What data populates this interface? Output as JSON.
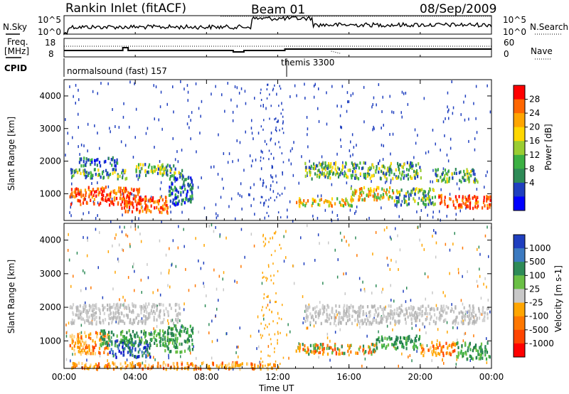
{
  "header": {
    "station": "Rankin Inlet (fitACF)",
    "beam": "Beam 01",
    "date": "08/Sep/2009"
  },
  "noise_panel": {
    "left_label": "N.Sky",
    "right_label": "N.Search",
    "left_ticks": [
      "10^5",
      "10^0"
    ],
    "right_ticks": [
      "10^5",
      "10^0"
    ]
  },
  "freq_panel": {
    "left_label_1": "Freq.",
    "left_label_2": "[MHz]",
    "right_label": "Nave",
    "left_ticks": [
      "18",
      "8"
    ],
    "right_ticks": [
      "60",
      "0"
    ]
  },
  "cpid": {
    "label": "CPID",
    "modes": [
      {
        "name": "normalsound (fast) 157",
        "start_hour": 0
      },
      {
        "name": "themis 3300",
        "start_hour": 12.5
      }
    ]
  },
  "time_axis": {
    "label": "Time UT",
    "ticks": [
      "00:00",
      "04:00",
      "08:00",
      "12:00",
      "16:00",
      "20:00",
      "00:00"
    ],
    "tick_hours": [
      0,
      4,
      8,
      12,
      16,
      20,
      24
    ]
  },
  "chart_data": [
    {
      "type": "heatmap",
      "name": "power",
      "ylabel": "Slant Range [km]",
      "xlabel": "Time UT",
      "xlim": [
        0,
        24
      ],
      "ylim": [
        180,
        4500
      ],
      "yticks": [
        1000,
        2000,
        3000,
        4000
      ],
      "colorbar": {
        "label": "Power [dB]",
        "ticks": [
          "28",
          "24",
          "20",
          "16",
          "12",
          "8",
          "4"
        ],
        "colors": [
          "#ff0000",
          "#ff6600",
          "#ffa500",
          "#ffd700",
          "#9acd32",
          "#3cb043",
          "#2e8b57",
          "#1f3fbf",
          "#0000ff"
        ]
      },
      "bands": [
        {
          "t0": 0.3,
          "t1": 4.2,
          "r0": 700,
          "r1": 1250,
          "level": "high"
        },
        {
          "t0": 3.2,
          "t1": 5.8,
          "r0": 450,
          "r1": 950,
          "level": "high"
        },
        {
          "t0": 0.3,
          "t1": 3.5,
          "r0": 1500,
          "r1": 1800,
          "level": "mid"
        },
        {
          "t0": 4.0,
          "t1": 6.6,
          "r0": 1550,
          "r1": 1950,
          "level": "mid"
        },
        {
          "t0": 0.8,
          "t1": 3.0,
          "r0": 1900,
          "r1": 2150,
          "level": "low"
        },
        {
          "t0": 5.8,
          "t1": 7.2,
          "r0": 700,
          "r1": 1600,
          "level": "low"
        },
        {
          "t0": 13.0,
          "t1": 16.2,
          "r0": 650,
          "r1": 900,
          "level": "midhigh"
        },
        {
          "t0": 13.5,
          "t1": 20.0,
          "r0": 1500,
          "r1": 2000,
          "level": "mid"
        },
        {
          "t0": 16.0,
          "t1": 18.5,
          "r0": 850,
          "r1": 1250,
          "level": "midhigh"
        },
        {
          "t0": 18.5,
          "t1": 20.8,
          "r0": 700,
          "r1": 1200,
          "level": "mid"
        },
        {
          "t0": 21.0,
          "t1": 23.9,
          "r0": 600,
          "r1": 1000,
          "level": "high"
        },
        {
          "t0": 20.8,
          "t1": 23.2,
          "r0": 1400,
          "r1": 1800,
          "level": "mid"
        }
      ]
    },
    {
      "type": "heatmap",
      "name": "velocity",
      "ylabel": "Slant Range [km]",
      "xlabel": "Time UT",
      "xlim": [
        0,
        24
      ],
      "ylim": [
        180,
        4500
      ],
      "yticks": [
        1000,
        2000,
        3000,
        4000
      ],
      "colorbar": {
        "label": "Velocity [m s-1]",
        "ticks": [
          "1000",
          "500",
          "100",
          "25",
          "-25",
          "-100",
          "-500",
          "-1000"
        ],
        "colors": [
          "#1f3fbf",
          "#3c7ac0",
          "#2e8b57",
          "#6abf45",
          "#c8c8c8",
          "#ffa500",
          "#ff7700",
          "#ff4500",
          "#ff0000"
        ]
      },
      "bands": [
        {
          "t0": 0.3,
          "t1": 6.5,
          "r0": 1550,
          "r1": 2150,
          "level": "ground"
        },
        {
          "t0": 0.3,
          "t1": 2.5,
          "r0": 650,
          "r1": 1300,
          "level": "neg"
        },
        {
          "t0": 2.5,
          "t1": 4.8,
          "r0": 550,
          "r1": 1050,
          "level": "pos"
        },
        {
          "t0": 2.0,
          "t1": 5.6,
          "r0": 900,
          "r1": 1350,
          "level": "green"
        },
        {
          "t0": 5.6,
          "t1": 7.2,
          "r0": 700,
          "r1": 1500,
          "level": "green"
        },
        {
          "t0": 0.3,
          "t1": 12.0,
          "r0": 200,
          "r1": 400,
          "level": "neg"
        },
        {
          "t0": 13.5,
          "t1": 23.8,
          "r0": 1550,
          "r1": 2100,
          "level": "ground"
        },
        {
          "t0": 13.0,
          "t1": 17.5,
          "r0": 650,
          "r1": 950,
          "level": "mixed"
        },
        {
          "t0": 17.5,
          "t1": 20.0,
          "r0": 800,
          "r1": 1200,
          "level": "green"
        },
        {
          "t0": 20.0,
          "t1": 22.0,
          "r0": 600,
          "r1": 1000,
          "level": "neg"
        },
        {
          "t0": 22.0,
          "t1": 23.9,
          "r0": 500,
          "r1": 1000,
          "level": "green"
        }
      ]
    }
  ]
}
